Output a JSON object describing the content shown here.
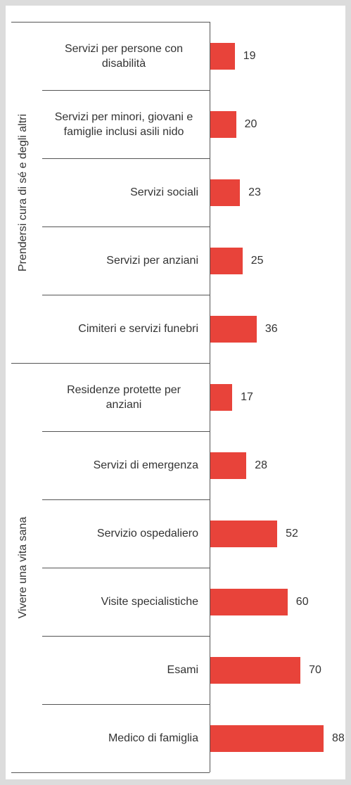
{
  "chart_data": {
    "type": "bar",
    "orientation": "horizontal",
    "color": "#e8433a",
    "groups": [
      {
        "name": "Prendersi cura di sé e degli altri",
        "categories": [
          "Servizi per persone con disabilità",
          "Servizi per minori, giovani e famiglie inclusi asili nido",
          "Servizi sociali",
          "Servizi per anziani",
          "Cimiteri e servizi funebri"
        ],
        "values": [
          19,
          20,
          23,
          25,
          36
        ]
      },
      {
        "name": "Vivere una vita sana",
        "categories": [
          "Residenze protette per anziani",
          "Servizi di emergenza",
          "Servizio ospedaliero",
          "Visite specialistiche",
          "Esami",
          "Medico di famiglia"
        ],
        "values": [
          17,
          28,
          52,
          60,
          70,
          88
        ]
      }
    ]
  }
}
